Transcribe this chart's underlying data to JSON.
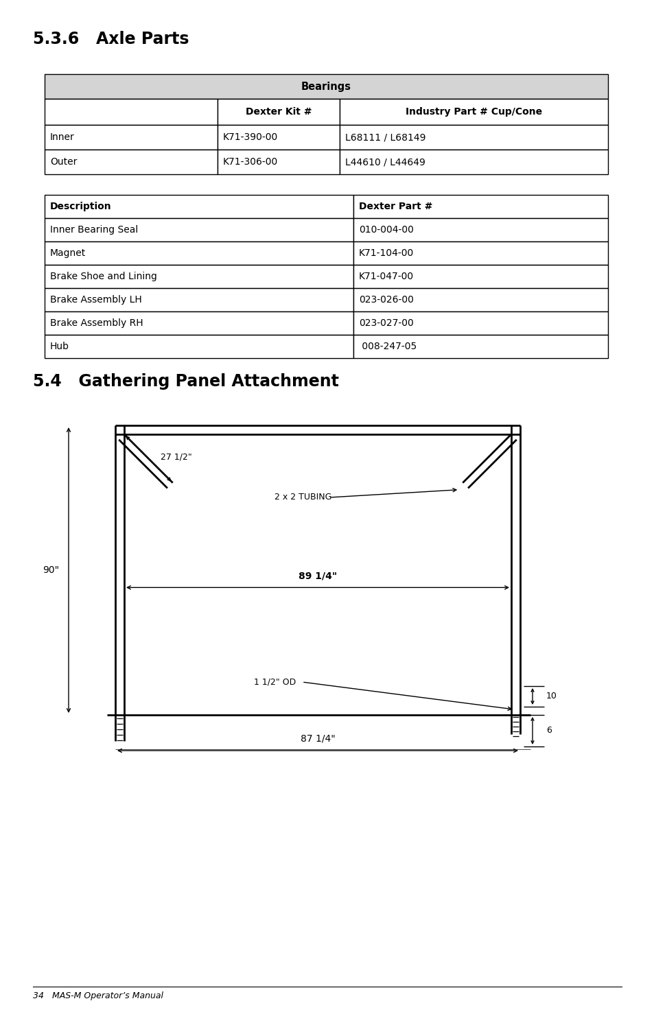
{
  "title_536": "5.3.6   Axle Parts",
  "title_54": "5.4   Gathering Panel Attachment",
  "footer": "34   MAS-M Operator’s Manual",
  "bg_color": "#ffffff",
  "table1_header": "Bearings",
  "table1_col_headers": [
    "",
    "Dexter Kit #",
    "Industry Part # Cup/Cone"
  ],
  "table1_rows": [
    [
      "Inner",
      "K71-390-00",
      "L68111 / L68149"
    ],
    [
      "Outer",
      "K71-306-00",
      "L44610 / L44649"
    ]
  ],
  "table2_col_headers": [
    "Description",
    "Dexter Part #"
  ],
  "table2_rows": [
    [
      "Inner Bearing Seal",
      "010-004-00"
    ],
    [
      "Magnet",
      "K71-104-00"
    ],
    [
      "Brake Shoe and Lining",
      "K71-047-00"
    ],
    [
      "Brake Assembly LH",
      "023-026-00"
    ],
    [
      "Brake Assembly RH",
      "023-027-00"
    ],
    [
      "Hub",
      " 008-247-05"
    ]
  ],
  "header_bg": "#d9d9d9",
  "table_border_color": "#000000"
}
